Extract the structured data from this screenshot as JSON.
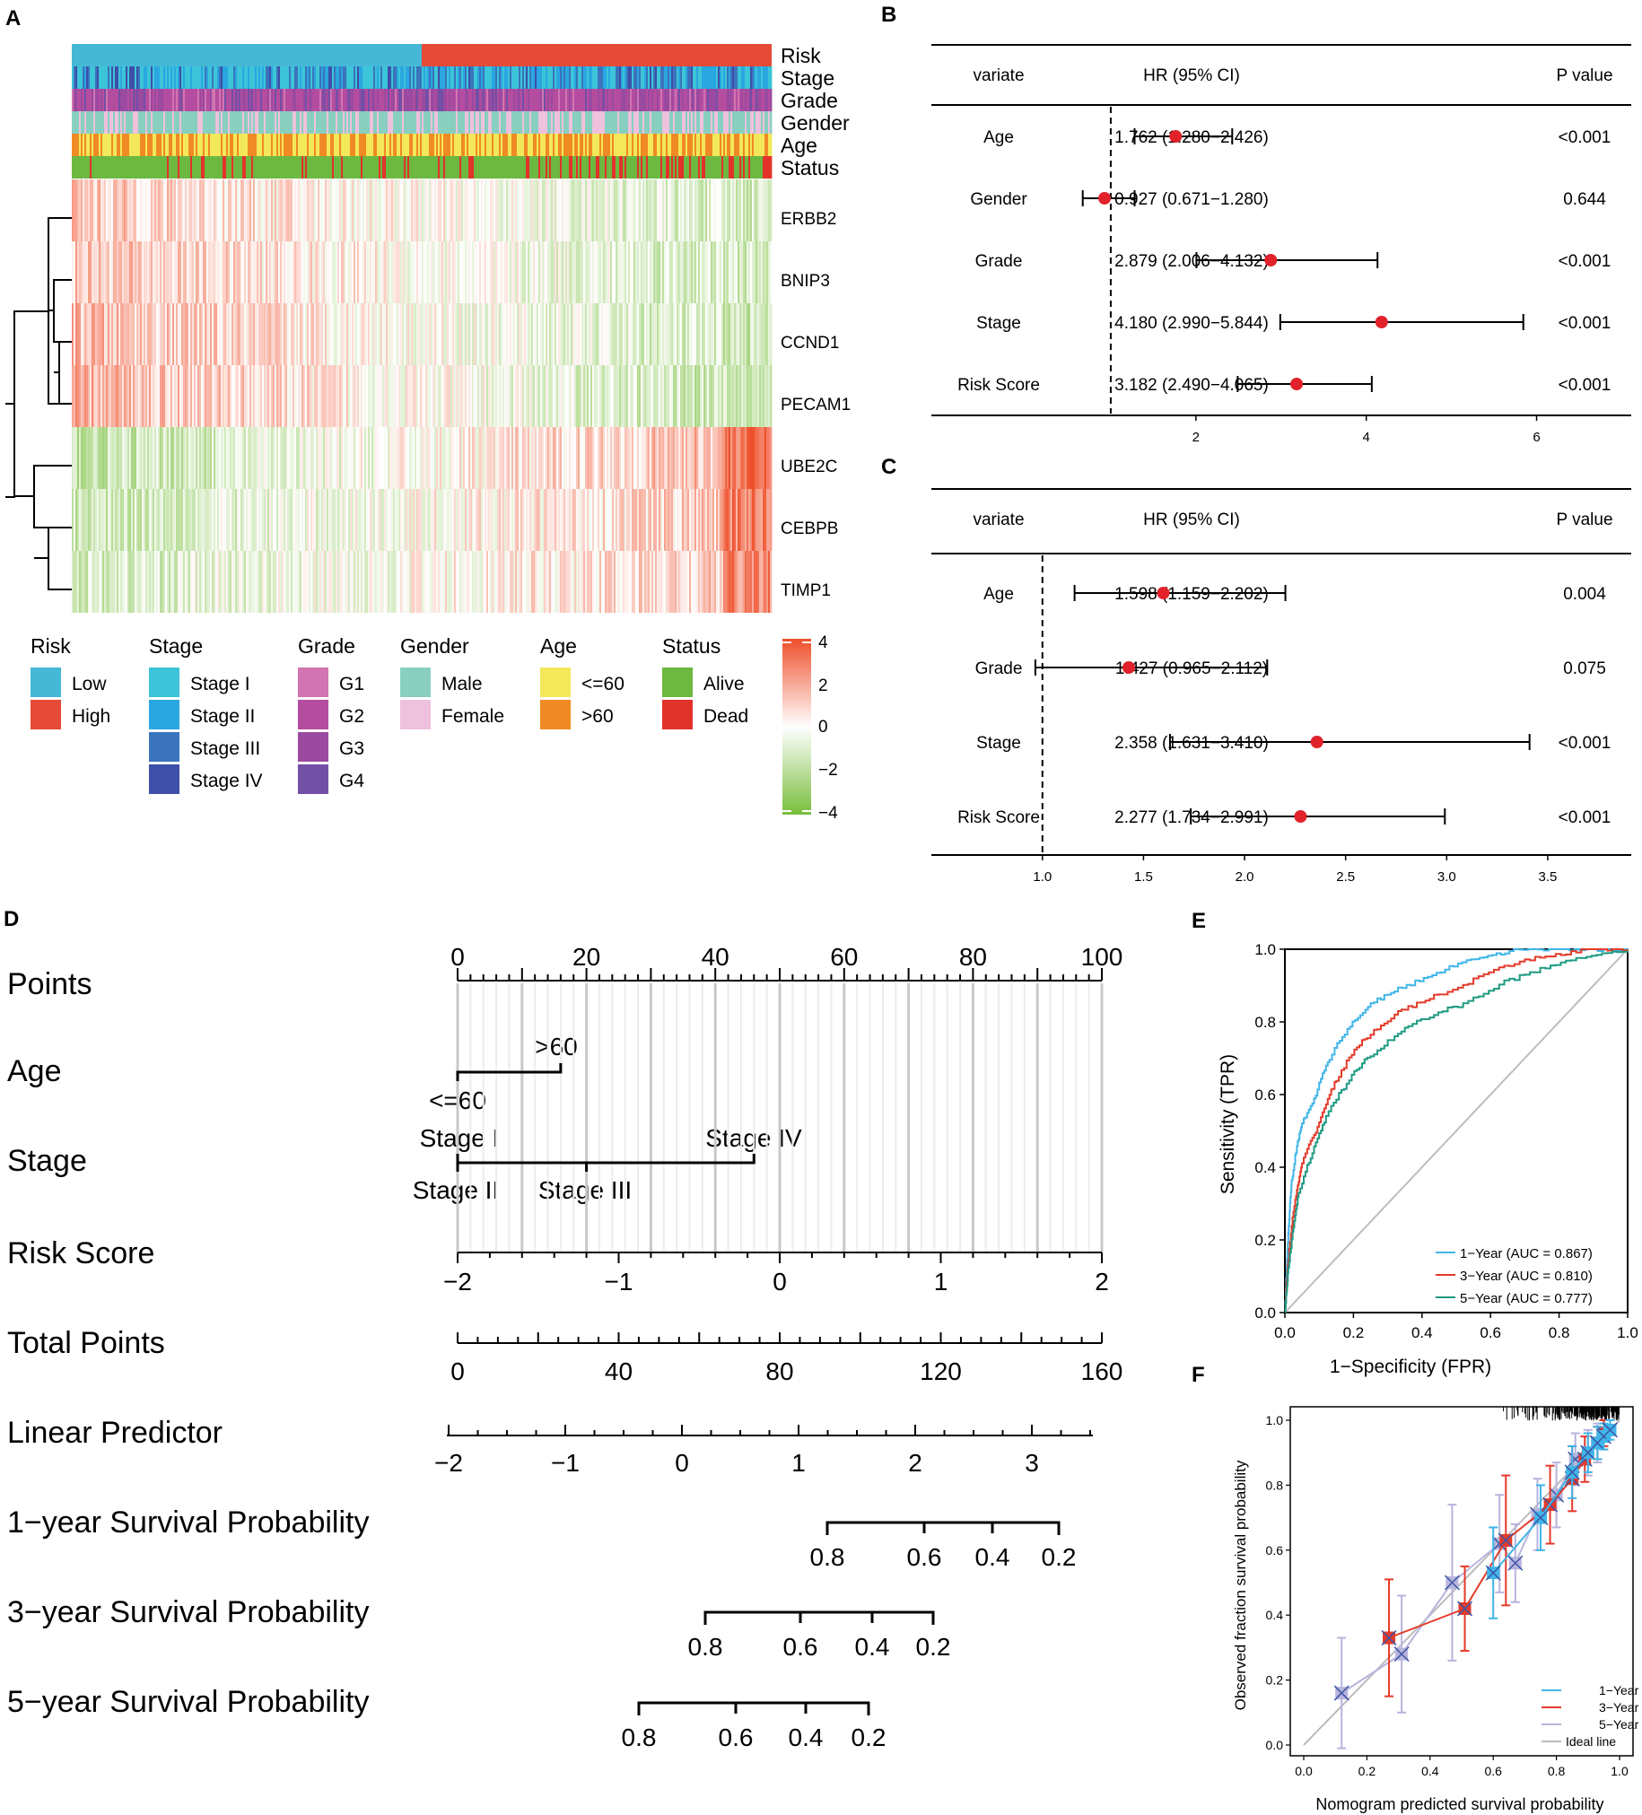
{
  "panels": {
    "A": "A",
    "B": "B",
    "C": "C",
    "D": "D",
    "E": "E",
    "F": "F"
  },
  "heatmap": {
    "annotation_tracks": [
      "Risk",
      "Stage",
      "Grade",
      "Gender",
      "Age",
      "Status"
    ],
    "genes": [
      "ERBB2",
      "BNIP3",
      "CCND1",
      "PECAM1",
      "UBE2C",
      "CEBPB",
      "TIMP1"
    ],
    "legend": {
      "groups": [
        {
          "title": "Risk",
          "items": [
            {
              "label": "Low",
              "color": "#45b8d6"
            },
            {
              "label": "High",
              "color": "#e54b37"
            }
          ]
        },
        {
          "title": "Stage",
          "items": [
            {
              "label": "Stage I",
              "color": "#3cc4d8"
            },
            {
              "label": "Stage II",
              "color": "#2aa6e0"
            },
            {
              "label": "Stage III",
              "color": "#3b74bc"
            },
            {
              "label": "Stage IV",
              "color": "#3d4fa8"
            }
          ]
        },
        {
          "title": "Grade",
          "items": [
            {
              "label": "G1",
              "color": "#d174b1"
            },
            {
              "label": "G2",
              "color": "#b44d9f"
            },
            {
              "label": "G3",
              "color": "#9a4aa0"
            },
            {
              "label": "G4",
              "color": "#7250a6"
            }
          ]
        },
        {
          "title": "Gender",
          "items": [
            {
              "label": "Male",
              "color": "#88cfc0"
            },
            {
              "label": "Female",
              "color": "#eec1dc"
            }
          ]
        },
        {
          "title": "Age",
          "items": [
            {
              "label": "<=60",
              "color": "#f3e85a"
            },
            {
              "label": ">60",
              "color": "#f08a24"
            }
          ]
        },
        {
          "title": "Status",
          "items": [
            {
              "label": "Alive",
              "color": "#6cb840"
            },
            {
              "label": "Dead",
              "color": "#e2332b"
            }
          ]
        }
      ],
      "colorbar_ticks": [
        "4",
        "2",
        "0",
        "−2",
        "−4"
      ],
      "colorbar_colors": {
        "high": "#ef4f2a",
        "mid": "#ffffff",
        "low": "#78be3b"
      }
    }
  },
  "chart_data": [
    {
      "type": "forest",
      "panel": "B",
      "header": {
        "variate": "variate",
        "hr": "HR (95% CI)",
        "p": "P value"
      },
      "rows": [
        {
          "variate": "Age",
          "hr_text": "1.762 (1.280−2.426)",
          "hr": 1.762,
          "lo": 1.28,
          "hi": 2.426,
          "p": "<0.001"
        },
        {
          "variate": "Gender",
          "hr_text": "0.927 (0.671−1.280)",
          "hr": 0.927,
          "lo": 0.671,
          "hi": 1.28,
          "p": "0.644"
        },
        {
          "variate": "Grade",
          "hr_text": "2.879 (2.006−4.132)",
          "hr": 2.879,
          "lo": 2.006,
          "hi": 4.132,
          "p": "<0.001"
        },
        {
          "variate": "Stage",
          "hr_text": "4.180 (2.990−5.844)",
          "hr": 4.18,
          "lo": 2.99,
          "hi": 5.844,
          "p": "<0.001"
        },
        {
          "variate": "Risk Score",
          "hr_text": "3.182 (2.490−4.065)",
          "hr": 3.182,
          "lo": 2.49,
          "hi": 4.065,
          "p": "<0.001"
        }
      ],
      "xlim": [
        0.2,
        6.5
      ],
      "ref": 1,
      "ticks": [
        2,
        4,
        6
      ],
      "tick_labels": [
        "2",
        "4",
        "6"
      ]
    },
    {
      "type": "forest",
      "panel": "C",
      "header": {
        "variate": "variate",
        "hr": "HR (95% CI)",
        "p": "P value"
      },
      "rows": [
        {
          "variate": "Age",
          "hr_text": "1.598 (1.159−2.202)",
          "hr": 1.598,
          "lo": 1.159,
          "hi": 2.202,
          "p": "0.004"
        },
        {
          "variate": "Grade",
          "hr_text": "1.427 (0.965−2.112)",
          "hr": 1.427,
          "lo": 0.965,
          "hi": 2.112,
          "p": "0.075"
        },
        {
          "variate": "Stage",
          "hr_text": "2.358 (1.631−3.410)",
          "hr": 2.358,
          "lo": 1.631,
          "hi": 3.41,
          "p": "<0.001"
        },
        {
          "variate": "Risk Score",
          "hr_text": "2.277 (1.734−2.991)",
          "hr": 2.277,
          "lo": 1.734,
          "hi": 2.991,
          "p": "<0.001"
        }
      ],
      "xlim": [
        0.85,
        3.7
      ],
      "ref": 1,
      "ticks": [
        1.0,
        1.5,
        2.0,
        2.5,
        3.0,
        3.5
      ],
      "tick_labels": [
        "1.0",
        "1.5",
        "2.0",
        "2.5",
        "3.0",
        "3.5"
      ]
    },
    {
      "type": "nomogram",
      "panel": "D",
      "rows": [
        {
          "label": "Points"
        },
        {
          "label": "Age",
          "levels": [
            "<=60",
            ">60"
          ]
        },
        {
          "label": "Stage",
          "levels": [
            "Stage I",
            "Stage II",
            "Stage III",
            "Stage IV"
          ]
        },
        {
          "label": "Risk Score"
        },
        {
          "label": "Total Points"
        },
        {
          "label": "Linear Predictor"
        },
        {
          "label": "1−year Survival Probability"
        },
        {
          "label": "3−year Survival Probability"
        },
        {
          "label": "5−year Survival Probability"
        }
      ],
      "points_ticks": [
        "0",
        "20",
        "40",
        "60",
        "80",
        "100"
      ],
      "risk_ticks": [
        "−2",
        "−1",
        "0",
        "1",
        "2"
      ],
      "total_ticks": [
        "0",
        "40",
        "80",
        "120",
        "160"
      ],
      "lp_ticks": [
        "−2",
        "−1",
        "0",
        "1",
        "2",
        "3"
      ],
      "surv1_ticks": [
        "0.8",
        "0.6",
        "0.4",
        "0.2"
      ],
      "surv3_ticks": [
        "0.8",
        "0.6",
        "0.4",
        "0.2"
      ],
      "surv5_ticks": [
        "0.8",
        "0.6",
        "0.4",
        "0.2"
      ]
    },
    {
      "type": "line",
      "panel": "E",
      "title": "",
      "xlabel": "1−Specificity (FPR)",
      "ylabel": "Sensitivity (TPR)",
      "xlim": [
        0,
        1
      ],
      "ylim": [
        0,
        1
      ],
      "ticks": [
        "0.0",
        "0.2",
        "0.4",
        "0.6",
        "0.8",
        "1.0"
      ],
      "series": [
        {
          "name": "1−Year (AUC = 0.867)",
          "color": "#3fb5e8",
          "x": [
            0,
            0.005,
            0.01,
            0.015,
            0.02,
            0.03,
            0.04,
            0.05,
            0.07,
            0.09,
            0.11,
            0.13,
            0.16,
            0.19,
            0.22,
            0.25,
            0.29,
            0.33,
            0.38,
            0.43,
            0.48,
            0.53,
            0.58,
            0.63,
            0.68,
            0.74,
            0.8,
            0.86,
            0.93,
            1.0
          ],
          "y": [
            0,
            0.12,
            0.22,
            0.3,
            0.36,
            0.43,
            0.48,
            0.52,
            0.56,
            0.6,
            0.66,
            0.7,
            0.75,
            0.79,
            0.82,
            0.85,
            0.87,
            0.89,
            0.91,
            0.93,
            0.95,
            0.97,
            0.98,
            0.99,
            1.0,
            1.0,
            1.0,
            1.0,
            1.0,
            1.0
          ]
        },
        {
          "name": "3−Year (AUC = 0.810)",
          "color": "#e43a2a",
          "x": [
            0,
            0.005,
            0.01,
            0.02,
            0.03,
            0.04,
            0.05,
            0.07,
            0.09,
            0.11,
            0.13,
            0.15,
            0.18,
            0.21,
            0.24,
            0.28,
            0.32,
            0.36,
            0.41,
            0.46,
            0.52,
            0.58,
            0.64,
            0.7,
            0.76,
            0.82,
            0.88,
            0.94,
            1.0
          ],
          "y": [
            0,
            0.08,
            0.15,
            0.24,
            0.31,
            0.36,
            0.41,
            0.46,
            0.5,
            0.55,
            0.6,
            0.64,
            0.69,
            0.73,
            0.76,
            0.79,
            0.82,
            0.84,
            0.86,
            0.88,
            0.9,
            0.93,
            0.95,
            0.97,
            0.98,
            0.99,
            1.0,
            1.0,
            1.0
          ]
        },
        {
          "name": "5−Year (AUC = 0.777)",
          "color": "#1e9a82",
          "x": [
            0,
            0.005,
            0.01,
            0.02,
            0.03,
            0.04,
            0.06,
            0.08,
            0.1,
            0.12,
            0.15,
            0.18,
            0.21,
            0.24,
            0.28,
            0.32,
            0.36,
            0.41,
            0.46,
            0.52,
            0.58,
            0.64,
            0.7,
            0.76,
            0.82,
            0.88,
            0.94,
            1.0
          ],
          "y": [
            0,
            0.06,
            0.12,
            0.2,
            0.27,
            0.33,
            0.39,
            0.44,
            0.49,
            0.54,
            0.59,
            0.63,
            0.67,
            0.7,
            0.73,
            0.76,
            0.79,
            0.81,
            0.83,
            0.85,
            0.88,
            0.91,
            0.93,
            0.95,
            0.97,
            0.98,
            0.99,
            1.0
          ]
        }
      ]
    },
    {
      "type": "line",
      "panel": "F",
      "xlabel": "Nomogram predicted survival probability",
      "ylabel": "Observed fraction survival probability",
      "xlim": [
        0,
        1
      ],
      "ylim": [
        0,
        1
      ],
      "ticks": [
        "0.0",
        "0.2",
        "0.4",
        "0.6",
        "0.8",
        "1.0"
      ],
      "series": [
        {
          "name": "1−Year",
          "color": "#3fb5e8",
          "x": [
            0.6,
            0.75,
            0.85,
            0.9,
            0.93,
            0.95,
            0.97
          ],
          "y": [
            0.53,
            0.7,
            0.84,
            0.9,
            0.93,
            0.95,
            0.97
          ],
          "err": [
            0.14,
            0.1,
            0.08,
            0.06,
            0.05,
            0.04,
            0.03
          ]
        },
        {
          "name": "3−Year",
          "color": "#e43a2a",
          "x": [
            0.27,
            0.51,
            0.64,
            0.78,
            0.85,
            0.89,
            0.93,
            0.95
          ],
          "y": [
            0.33,
            0.42,
            0.63,
            0.74,
            0.82,
            0.88,
            0.93,
            0.96
          ],
          "err": [
            0.18,
            0.13,
            0.2,
            0.12,
            0.1,
            0.07,
            0.05,
            0.04
          ]
        },
        {
          "name": "5−Year",
          "color": "#b7b4dd",
          "x": [
            0.12,
            0.31,
            0.47,
            0.62,
            0.67,
            0.74,
            0.8,
            0.86,
            0.9,
            0.93
          ],
          "y": [
            0.16,
            0.28,
            0.5,
            0.62,
            0.56,
            0.71,
            0.77,
            0.88,
            0.9,
            0.93
          ],
          "err": [
            0.17,
            0.18,
            0.24,
            0.15,
            0.12,
            0.11,
            0.1,
            0.08,
            0.07,
            0.06
          ]
        },
        {
          "name": "Ideal line",
          "color": "#bbbbbb",
          "x": [
            0,
            1
          ],
          "y": [
            0,
            1
          ]
        }
      ]
    }
  ]
}
